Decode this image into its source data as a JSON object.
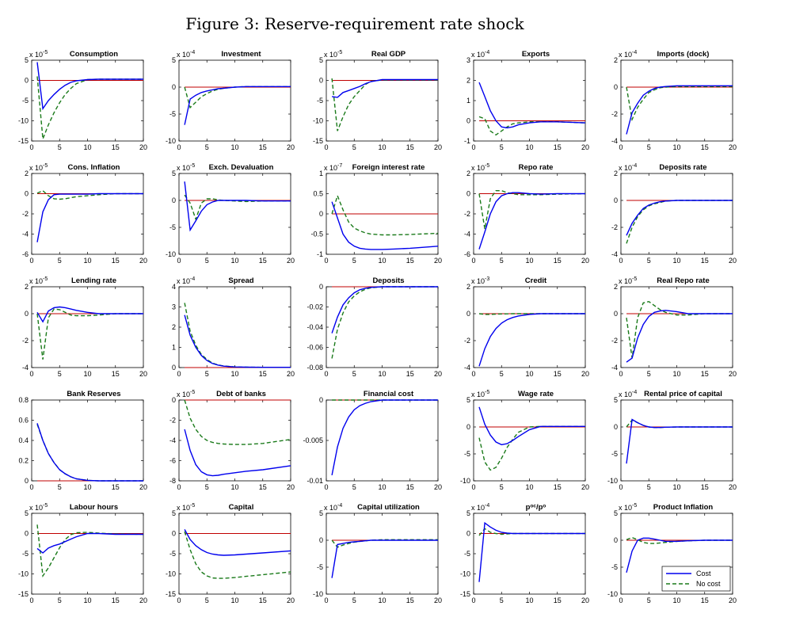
{
  "figure_title": "Figure 3: Reserve-requirement rate shock",
  "colors": {
    "cost": "#0000ee",
    "no_cost": "#1a7a1a",
    "zero_line": "#c00000"
  },
  "legend": {
    "cost": "Cost",
    "no_cost": "No cost"
  },
  "chart_data": {
    "type": "line",
    "x": [
      1,
      2,
      3,
      4,
      5,
      6,
      7,
      8,
      10,
      12,
      15,
      20
    ],
    "xlim": [
      0,
      20
    ],
    "xticks": [
      "0",
      "5",
      "10",
      "15",
      "20"
    ],
    "legend_position": "bottom-right of last panel",
    "series_names": [
      "Cost",
      "No cost"
    ],
    "panels": [
      {
        "title": "Consumption",
        "exponent": "-5",
        "ylim": [
          -15,
          5
        ],
        "yticks": [
          "-15",
          "-10",
          "-5",
          "0",
          "5"
        ],
        "cost": [
          4.5,
          -7,
          -5,
          -3.5,
          -2.2,
          -1.2,
          -0.5,
          -0.1,
          0.2,
          0.3,
          0.3,
          0.3
        ],
        "no_cost": [
          1,
          -14.5,
          -11,
          -8,
          -5.5,
          -3.5,
          -2,
          -0.8,
          0.2,
          0.3,
          0.3,
          0.3
        ]
      },
      {
        "title": "Investment",
        "exponent": "-4",
        "ylim": [
          -10,
          5
        ],
        "yticks": [
          "-10",
          "-5",
          "0",
          "5"
        ],
        "cost": [
          -7,
          -2.2,
          -1.5,
          -1,
          -0.7,
          -0.5,
          -0.3,
          -0.2,
          0,
          0.1,
          0.1,
          0.1
        ],
        "no_cost": [
          0,
          -3.8,
          -2.8,
          -1.8,
          -1.2,
          -0.7,
          -0.4,
          -0.2,
          0,
          0.1,
          0.1,
          0.1
        ]
      },
      {
        "title": "Real GDP",
        "exponent": "-5",
        "ylim": [
          -15,
          5
        ],
        "yticks": [
          "-15",
          "-10",
          "-5",
          "0",
          "5"
        ],
        "cost": [
          -4,
          -4.2,
          -3,
          -2.5,
          -2,
          -1.5,
          -0.8,
          -0.3,
          0.2,
          0.2,
          0.2,
          0.2
        ],
        "no_cost": [
          0.5,
          -12.5,
          -9,
          -6,
          -4,
          -2.5,
          -1,
          -0.2,
          0.1,
          0.1,
          0.1,
          0.1
        ]
      },
      {
        "title": "Exports",
        "exponent": "-4",
        "ylim": [
          -1,
          3
        ],
        "yticks": [
          "-1",
          "0",
          "1",
          "2",
          "3"
        ],
        "cost": [
          1.9,
          1.2,
          0.5,
          0,
          -0.3,
          -0.35,
          -0.3,
          -0.2,
          -0.1,
          -0.05,
          -0.05,
          -0.1
        ],
        "no_cost": [
          0.2,
          0.1,
          -0.5,
          -0.7,
          -0.5,
          -0.3,
          -0.15,
          -0.1,
          -0.05,
          -0.05,
          -0.05,
          -0.1
        ]
      },
      {
        "title": "Imports (dock)",
        "exponent": "-4",
        "ylim": [
          -4,
          2
        ],
        "yticks": [
          "-4",
          "-2",
          "0",
          "2"
        ],
        "cost": [
          -3.5,
          -1.9,
          -1.2,
          -0.6,
          -0.3,
          -0.1,
          0,
          0.05,
          0.1,
          0.1,
          0.1,
          0.1
        ],
        "no_cost": [
          0,
          -2.4,
          -1.5,
          -0.9,
          -0.4,
          -0.2,
          -0.05,
          0,
          0.05,
          0.05,
          0.05,
          0.05
        ]
      },
      {
        "title": "Cons. Inflation",
        "exponent": "-5",
        "ylim": [
          -6,
          2
        ],
        "yticks": [
          "-6",
          "-4",
          "-2",
          "0",
          "2"
        ],
        "cost": [
          -4.8,
          -1.8,
          -0.6,
          -0.1,
          -0.05,
          -0.05,
          -0.05,
          -0.05,
          -0.05,
          0,
          0,
          0
        ],
        "no_cost": [
          0.05,
          0.3,
          -0.2,
          -0.5,
          -0.55,
          -0.5,
          -0.4,
          -0.3,
          -0.2,
          -0.1,
          0,
          0
        ]
      },
      {
        "title": "Exch. Devaluation",
        "exponent": "-5",
        "ylim": [
          -10,
          5
        ],
        "yticks": [
          "-10",
          "-5",
          "0",
          "5"
        ],
        "cost": [
          3.5,
          -5.5,
          -3.8,
          -2,
          -0.8,
          -0.3,
          0,
          0,
          0,
          0,
          -0.1,
          -0.1
        ],
        "no_cost": [
          1,
          -0.5,
          -3.5,
          -0.5,
          0.3,
          0.3,
          0.1,
          0,
          -0.1,
          -0.2,
          -0.1,
          -0.1
        ]
      },
      {
        "title": "Foreign interest rate",
        "exponent": "-7",
        "ylim": [
          -1,
          1
        ],
        "yticks": [
          "-1",
          "-0.5",
          "0",
          "0.5",
          "1"
        ],
        "cost": [
          0.3,
          -0.1,
          -0.5,
          -0.7,
          -0.8,
          -0.85,
          -0.87,
          -0.88,
          -0.88,
          -0.87,
          -0.85,
          -0.8
        ],
        "no_cost": [
          0,
          0.45,
          0.1,
          -0.2,
          -0.35,
          -0.42,
          -0.47,
          -0.5,
          -0.52,
          -0.52,
          -0.51,
          -0.48
        ]
      },
      {
        "title": "Repo rate",
        "exponent": "-5",
        "ylim": [
          -6,
          2
        ],
        "yticks": [
          "-6",
          "-4",
          "-2",
          "0",
          "2"
        ],
        "cost": [
          -5.5,
          -3.8,
          -2,
          -0.8,
          -0.2,
          0,
          0.1,
          0.1,
          0,
          -0.05,
          0,
          0
        ],
        "no_cost": [
          0,
          -3.5,
          -0.5,
          0.3,
          0.3,
          0.1,
          0,
          -0.1,
          -0.1,
          -0.1,
          -0.05,
          0
        ]
      },
      {
        "title": "Deposits rate",
        "exponent": "-4",
        "ylim": [
          -4,
          2
        ],
        "yticks": [
          "-4",
          "-2",
          "0",
          "2"
        ],
        "cost": [
          -2.6,
          -1.7,
          -1.1,
          -0.6,
          -0.35,
          -0.2,
          -0.1,
          -0.05,
          0,
          0,
          0,
          0
        ],
        "no_cost": [
          -3.2,
          -2,
          -1.2,
          -0.7,
          -0.4,
          -0.25,
          -0.15,
          -0.05,
          0,
          0,
          0,
          0
        ]
      },
      {
        "title": "Lending rate",
        "exponent": "-5",
        "ylim": [
          -4,
          2
        ],
        "yticks": [
          "-4",
          "-2",
          "0",
          "2"
        ],
        "cost": [
          0.1,
          -0.6,
          0.2,
          0.45,
          0.5,
          0.45,
          0.35,
          0.25,
          0.1,
          0,
          0,
          0
        ],
        "no_cost": [
          0,
          -3.4,
          -0.3,
          0.35,
          0.3,
          0.1,
          -0.1,
          -0.15,
          -0.15,
          -0.1,
          0,
          0
        ]
      },
      {
        "title": "Spread",
        "exponent": "-4",
        "ylim": [
          0,
          4
        ],
        "yticks": [
          "0",
          "1",
          "2",
          "3",
          "4"
        ],
        "cost": [
          2.6,
          1.6,
          1.0,
          0.6,
          0.35,
          0.2,
          0.12,
          0.07,
          0.03,
          0.02,
          0.01,
          0.01
        ],
        "no_cost": [
          3.2,
          1.8,
          1.1,
          0.65,
          0.4,
          0.22,
          0.13,
          0.08,
          0.03,
          0.02,
          0.01,
          0.01
        ]
      },
      {
        "title": "Deposits",
        "exponent": "",
        "ylim": [
          -0.08,
          0
        ],
        "yticks": [
          "-0.08",
          "-0.06",
          "-0.04",
          "-0.02",
          "0"
        ],
        "cost": [
          -0.046,
          -0.03,
          -0.018,
          -0.011,
          -0.006,
          -0.003,
          -0.0015,
          -0.0006,
          0,
          0,
          0,
          0
        ],
        "no_cost": [
          -0.071,
          -0.042,
          -0.026,
          -0.015,
          -0.009,
          -0.005,
          -0.0025,
          -0.001,
          0,
          0,
          0,
          0
        ]
      },
      {
        "title": "Credit",
        "exponent": "-3",
        "ylim": [
          -4,
          2
        ],
        "yticks": [
          "-4",
          "-2",
          "0",
          "2"
        ],
        "cost": [
          -3.9,
          -2.6,
          -1.7,
          -1.1,
          -0.7,
          -0.45,
          -0.28,
          -0.17,
          -0.05,
          0,
          0,
          0
        ],
        "no_cost": [
          0,
          -0.05,
          -0.05,
          -0.03,
          -0.02,
          -0.01,
          0,
          0,
          0,
          0,
          0,
          0
        ]
      },
      {
        "title": "Real Repo rate",
        "exponent": "-5",
        "ylim": [
          -4,
          2
        ],
        "yticks": [
          "-4",
          "-2",
          "0",
          "2"
        ],
        "cost": [
          -3.6,
          -3.3,
          -1.8,
          -0.8,
          -0.2,
          0.1,
          0.2,
          0.25,
          0.15,
          0,
          0,
          0
        ],
        "no_cost": [
          -0.3,
          -3.3,
          -0.3,
          0.8,
          0.9,
          0.6,
          0.3,
          0.1,
          -0.1,
          -0.1,
          0,
          0
        ]
      },
      {
        "title": "Bank Reserves",
        "exponent": "",
        "ylim": [
          0,
          0.8
        ],
        "yticks": [
          "0",
          "0.2",
          "0.4",
          "0.6",
          "0.8"
        ],
        "cost": [
          0.57,
          0.4,
          0.27,
          0.18,
          0.11,
          0.07,
          0.04,
          0.02,
          0.005,
          0,
          0,
          0
        ],
        "no_cost": [
          0.56,
          0.4,
          0.27,
          0.18,
          0.11,
          0.07,
          0.04,
          0.02,
          0.005,
          0,
          0,
          0
        ]
      },
      {
        "title": "Debt of banks",
        "exponent": "-5",
        "ylim": [
          -8,
          0
        ],
        "yticks": [
          "-8",
          "-6",
          "-4",
          "-2",
          "0"
        ],
        "cost": [
          -2.9,
          -5,
          -6.4,
          -7.1,
          -7.4,
          -7.5,
          -7.45,
          -7.35,
          -7.2,
          -7.05,
          -6.9,
          -6.5
        ],
        "no_cost": [
          0,
          -1.8,
          -2.9,
          -3.6,
          -4,
          -4.2,
          -4.3,
          -4.35,
          -4.4,
          -4.4,
          -4.3,
          -3.9
        ]
      },
      {
        "title": "Financial cost",
        "exponent": "",
        "ylim": [
          -0.01,
          0
        ],
        "yticks": [
          "-0.01",
          "-0.005",
          "0"
        ],
        "cost": [
          -0.0093,
          -0.0058,
          -0.0035,
          -0.0021,
          -0.0012,
          -0.0007,
          -0.0004,
          -0.0002,
          0,
          0,
          0,
          0
        ],
        "no_cost": [
          0,
          0,
          0,
          0,
          0,
          0,
          0,
          0,
          0,
          0,
          0,
          0
        ]
      },
      {
        "title": "Wage rate",
        "exponent": "-5",
        "ylim": [
          -10,
          5
        ],
        "yticks": [
          "-10",
          "-5",
          "0",
          "5"
        ],
        "cost": [
          3.7,
          0.5,
          -1.5,
          -2.8,
          -3.3,
          -3.1,
          -2.5,
          -1.8,
          -0.5,
          0.1,
          0.1,
          0.1
        ],
        "no_cost": [
          -2,
          -6.5,
          -8,
          -7.5,
          -5.8,
          -3.8,
          -2.3,
          -1,
          0,
          0.1,
          0.1,
          0.1
        ]
      },
      {
        "title": "Rental price of capital",
        "exponent": "-4",
        "ylim": [
          -10,
          5
        ],
        "yticks": [
          "-10",
          "-5",
          "0",
          "5"
        ],
        "cost": [
          -6.8,
          1.4,
          0.8,
          0.3,
          0,
          -0.1,
          -0.1,
          -0.05,
          0,
          0,
          0,
          0
        ],
        "no_cost": [
          0,
          1.3,
          0.8,
          0.3,
          0,
          -0.1,
          -0.1,
          -0.05,
          0,
          0,
          0,
          0
        ]
      },
      {
        "title": "Labour hours",
        "exponent": "-5",
        "ylim": [
          -15,
          5
        ],
        "yticks": [
          "-15",
          "-10",
          "-5",
          "0",
          "5"
        ],
        "cost": [
          -3.7,
          -4.8,
          -3.6,
          -3,
          -2.6,
          -2,
          -1.4,
          -0.8,
          0,
          0,
          -0.2,
          -0.2
        ],
        "no_cost": [
          2.2,
          -10.5,
          -8.5,
          -6,
          -3.5,
          -1.5,
          -0.3,
          0.2,
          0.3,
          0.1,
          -0.1,
          -0.2
        ]
      },
      {
        "title": "Capital",
        "exponent": "-5",
        "ylim": [
          -15,
          5
        ],
        "yticks": [
          "-15",
          "-10",
          "-5",
          "0",
          "5"
        ],
        "cost": [
          1,
          -1.5,
          -3,
          -4,
          -4.7,
          -5.1,
          -5.3,
          -5.4,
          -5.3,
          -5.1,
          -4.8,
          -4.3
        ],
        "no_cost": [
          0.5,
          -4,
          -7.5,
          -9.5,
          -10.5,
          -11,
          -11.1,
          -11.1,
          -10.9,
          -10.6,
          -10.2,
          -9.5
        ]
      },
      {
        "title": "Capital utilization",
        "exponent": "-4",
        "ylim": [
          -10,
          5
        ],
        "yticks": [
          "-10",
          "-5",
          "0",
          "5"
        ],
        "cost": [
          -7,
          -0.8,
          -0.6,
          -0.4,
          -0.3,
          -0.2,
          -0.1,
          0,
          0,
          0,
          0,
          0
        ],
        "no_cost": [
          0,
          -1.3,
          -0.9,
          -0.6,
          -0.35,
          -0.2,
          -0.1,
          0,
          0.1,
          0.1,
          0.1,
          0.1
        ]
      },
      {
        "title": "pᵒᶜ/pᵒ",
        "exponent": "-4",
        "ylim": [
          -15,
          5
        ],
        "yticks": [
          "-15",
          "-10",
          "-5",
          "0",
          "5"
        ],
        "cost": [
          -12,
          2.6,
          1.6,
          0.8,
          0.3,
          0.1,
          0,
          0,
          0,
          0,
          0,
          0
        ],
        "no_cost": [
          -0.5,
          1.2,
          0.3,
          0,
          -0.2,
          -0.1,
          0,
          0,
          0,
          0,
          0,
          0
        ]
      },
      {
        "title": "Product Inflation",
        "exponent": "-5",
        "ylim": [
          -10,
          5
        ],
        "yticks": [
          "-10",
          "-5",
          "0",
          "5"
        ],
        "cost": [
          -6,
          -2,
          0,
          0.4,
          0.4,
          0.2,
          0,
          -0.2,
          -0.2,
          -0.1,
          0,
          0
        ],
        "no_cost": [
          0.1,
          0.5,
          0.1,
          -0.4,
          -0.6,
          -0.6,
          -0.5,
          -0.4,
          -0.2,
          -0.1,
          0,
          0
        ]
      }
    ]
  }
}
